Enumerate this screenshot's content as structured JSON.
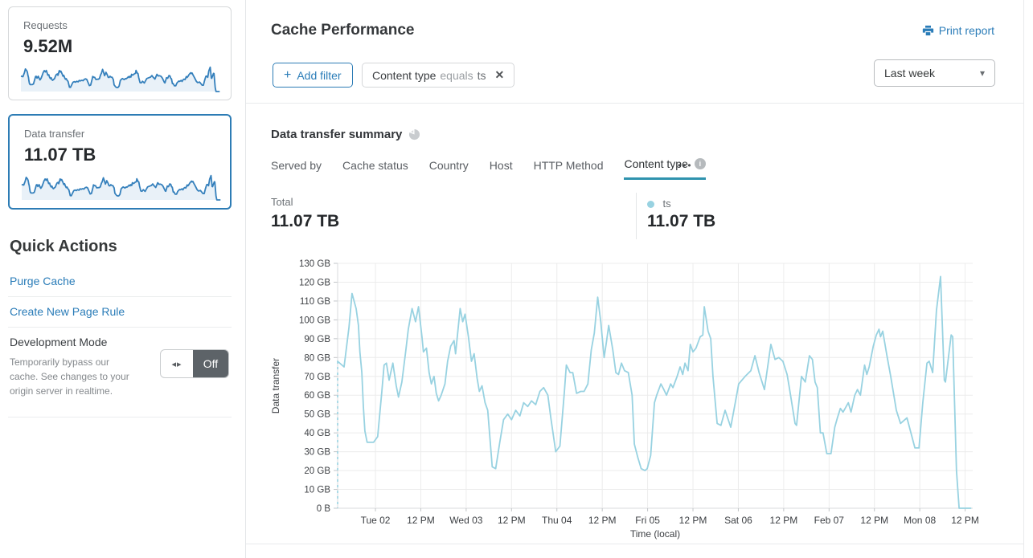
{
  "app": {
    "accent_blue": "#2a7cb8",
    "active_tab_underline": "#2f93ae"
  },
  "sidebar": {
    "spark_color": "#3580bc",
    "spark_fill": "#e9f1f8",
    "cards": [
      {
        "label": "Requests",
        "value": "9.52M"
      },
      {
        "label": "Data transfer",
        "value": "11.07 TB"
      }
    ],
    "quick_actions_title": "Quick Actions",
    "links": [
      {
        "label": "Purge Cache"
      },
      {
        "label": "Create New Page Rule"
      }
    ],
    "dev_mode": {
      "title": "Development Mode",
      "description": "Temporarily bypass our cache. See changes to your origin server in realtime.",
      "state": "Off"
    }
  },
  "header": {
    "title": "Cache Performance",
    "print_label": "Print report",
    "add_filter_label": "Add filter",
    "filter_chip": {
      "field": "Content type",
      "operator": "equals",
      "value": "ts"
    },
    "time_range": "Last week"
  },
  "summary": {
    "title": "Data transfer summary",
    "tabs": [
      {
        "label": "Served by"
      },
      {
        "label": "Cache status"
      },
      {
        "label": "Country"
      },
      {
        "label": "Host"
      },
      {
        "label": "HTTP Method"
      },
      {
        "label": "Content type",
        "active": true
      }
    ],
    "total_label": "Total",
    "total_value": "11.07 TB",
    "legend": {
      "name": "ts",
      "value": "11.07 TB",
      "color": "#98d2e1"
    }
  },
  "chart_data": {
    "type": "line",
    "title": "Data transfer summary",
    "xlabel": "Time (local)",
    "ylabel": "Data transfer",
    "unit": "GB",
    "ylim": [
      0,
      130
    ],
    "grid": true,
    "y_ticks": [
      "0 B",
      "10 GB",
      "20 GB",
      "30 GB",
      "40 GB",
      "50 GB",
      "60 GB",
      "70 GB",
      "80 GB",
      "90 GB",
      "100 GB",
      "110 GB",
      "120 GB",
      "130 GB"
    ],
    "x_ticks": [
      "Tue 02",
      "12 PM",
      "Wed 03",
      "12 PM",
      "Thu 04",
      "12 PM",
      "Fri 05",
      "12 PM",
      "Sat 06",
      "12 PM",
      "Feb 07",
      "12 PM",
      "Mon 08",
      "12 PM"
    ],
    "x_tick_hours": [
      10,
      22,
      34,
      46,
      58,
      70,
      82,
      94,
      106,
      118,
      130,
      142,
      154,
      166
    ],
    "x_range_hours": 168,
    "start_boundary_dashed": true,
    "series": [
      {
        "name": "ts",
        "color": "#98d2e1",
        "points_hours_gb": [
          [
            0,
            78
          ],
          [
            1.7,
            75
          ],
          [
            3,
            96
          ],
          [
            3.8,
            114
          ],
          [
            4.9,
            106
          ],
          [
            5.5,
            97
          ],
          [
            5.9,
            83
          ],
          [
            6.4,
            72
          ],
          [
            6.8,
            54
          ],
          [
            7.2,
            41
          ],
          [
            7.8,
            35
          ],
          [
            9.5,
            35
          ],
          [
            10.6,
            38
          ],
          [
            11.7,
            62
          ],
          [
            12.3,
            76
          ],
          [
            12.9,
            77
          ],
          [
            13.6,
            68
          ],
          [
            14.6,
            77
          ],
          [
            15.5,
            65
          ],
          [
            16.1,
            59
          ],
          [
            17,
            67
          ],
          [
            18,
            83
          ],
          [
            18.7,
            95
          ],
          [
            19.7,
            106
          ],
          [
            20.6,
            99
          ],
          [
            21.4,
            107
          ],
          [
            22.3,
            91
          ],
          [
            22.7,
            83
          ],
          [
            23.5,
            85
          ],
          [
            24.2,
            72
          ],
          [
            24.8,
            66
          ],
          [
            25.5,
            70
          ],
          [
            26.1,
            61
          ],
          [
            26.7,
            57
          ],
          [
            27.4,
            60
          ],
          [
            28.4,
            66
          ],
          [
            29.1,
            78
          ],
          [
            29.9,
            86
          ],
          [
            30.8,
            89
          ],
          [
            31.2,
            82
          ],
          [
            32.4,
            106
          ],
          [
            33.1,
            99
          ],
          [
            33.7,
            103
          ],
          [
            34.6,
            91
          ],
          [
            35.4,
            78
          ],
          [
            36.1,
            82
          ],
          [
            36.9,
            69
          ],
          [
            37.5,
            62
          ],
          [
            38.2,
            65
          ],
          [
            39,
            56
          ],
          [
            39.7,
            52
          ],
          [
            40.3,
            37
          ],
          [
            40.9,
            22
          ],
          [
            41.8,
            21
          ],
          [
            42.9,
            35
          ],
          [
            43.9,
            47
          ],
          [
            45,
            50
          ],
          [
            46,
            47
          ],
          [
            47.1,
            52
          ],
          [
            48.2,
            49
          ],
          [
            49.2,
            56
          ],
          [
            50.3,
            54
          ],
          [
            51.3,
            57
          ],
          [
            52.4,
            55
          ],
          [
            53.5,
            62
          ],
          [
            54.5,
            64
          ],
          [
            55.6,
            60
          ],
          [
            56.4,
            48
          ],
          [
            57.7,
            30
          ],
          [
            58.8,
            33
          ],
          [
            60,
            62
          ],
          [
            60.5,
            76
          ],
          [
            61.5,
            72
          ],
          [
            62.2,
            72
          ],
          [
            63.2,
            61
          ],
          [
            64.3,
            62
          ],
          [
            65.2,
            62
          ],
          [
            66.2,
            66
          ],
          [
            67.1,
            84
          ],
          [
            67.9,
            93
          ],
          [
            68.8,
            112
          ],
          [
            69.6,
            99
          ],
          [
            70.5,
            80
          ],
          [
            71.1,
            88
          ],
          [
            71.7,
            97
          ],
          [
            72.8,
            84
          ],
          [
            73.6,
            72
          ],
          [
            74.3,
            71
          ],
          [
            75.1,
            77
          ],
          [
            75.9,
            73
          ],
          [
            76.9,
            72
          ],
          [
            77.9,
            60
          ],
          [
            78.5,
            34
          ],
          [
            79.4,
            27
          ],
          [
            80.3,
            21
          ],
          [
            81.3,
            20
          ],
          [
            81.9,
            21
          ],
          [
            82.8,
            28
          ],
          [
            83.8,
            56
          ],
          [
            84.4,
            60
          ],
          [
            85.5,
            66
          ],
          [
            86.3,
            63
          ],
          [
            87,
            60
          ],
          [
            88.1,
            66
          ],
          [
            88.7,
            64
          ],
          [
            89.8,
            70
          ],
          [
            90.6,
            75
          ],
          [
            91.3,
            71
          ],
          [
            91.9,
            77
          ],
          [
            92.7,
            73
          ],
          [
            93.3,
            87
          ],
          [
            94,
            83
          ],
          [
            94.8,
            85
          ],
          [
            95.9,
            91
          ],
          [
            96.6,
            92
          ],
          [
            97,
            107
          ],
          [
            98,
            94
          ],
          [
            98.7,
            90
          ],
          [
            99.3,
            70
          ],
          [
            100.4,
            45
          ],
          [
            101.4,
            44
          ],
          [
            102.5,
            52
          ],
          [
            104,
            43
          ],
          [
            105.1,
            55
          ],
          [
            106.1,
            66
          ],
          [
            107.8,
            70
          ],
          [
            109.3,
            73
          ],
          [
            110.4,
            81
          ],
          [
            111.5,
            72
          ],
          [
            112.9,
            63
          ],
          [
            114.6,
            87
          ],
          [
            115.7,
            79
          ],
          [
            116.7,
            80
          ],
          [
            117.8,
            78
          ],
          [
            118.9,
            71
          ],
          [
            119.5,
            64
          ],
          [
            121,
            45
          ],
          [
            121.4,
            44
          ],
          [
            122.7,
            70
          ],
          [
            123.7,
            67
          ],
          [
            124.8,
            81
          ],
          [
            125.6,
            79
          ],
          [
            126.3,
            67
          ],
          [
            126.9,
            64
          ],
          [
            127.7,
            40
          ],
          [
            128.4,
            40
          ],
          [
            129.4,
            29
          ],
          [
            130.5,
            29
          ],
          [
            131.5,
            43
          ],
          [
            132.2,
            48
          ],
          [
            133,
            53
          ],
          [
            133.7,
            51
          ],
          [
            135.1,
            56
          ],
          [
            135.8,
            51
          ],
          [
            136.8,
            60
          ],
          [
            137.5,
            63
          ],
          [
            138.3,
            60
          ],
          [
            139.4,
            76
          ],
          [
            140,
            71
          ],
          [
            140.6,
            75
          ],
          [
            141.7,
            86
          ],
          [
            142.5,
            92
          ],
          [
            143.2,
            95
          ],
          [
            143.6,
            91
          ],
          [
            144.2,
            94
          ],
          [
            145.3,
            81
          ],
          [
            146.3,
            70
          ],
          [
            147.8,
            52
          ],
          [
            148.9,
            45
          ],
          [
            150.6,
            48
          ],
          [
            152.7,
            32
          ],
          [
            153.8,
            32
          ],
          [
            154.8,
            56
          ],
          [
            155.9,
            77
          ],
          [
            156.5,
            78
          ],
          [
            157.4,
            72
          ],
          [
            158.4,
            105
          ],
          [
            159.5,
            123
          ],
          [
            160.5,
            68
          ],
          [
            160.8,
            67
          ],
          [
            162.3,
            92
          ],
          [
            162.7,
            91
          ],
          [
            163.7,
            20
          ],
          [
            164.4,
            0
          ],
          [
            167.5,
            0
          ]
        ]
      }
    ]
  }
}
